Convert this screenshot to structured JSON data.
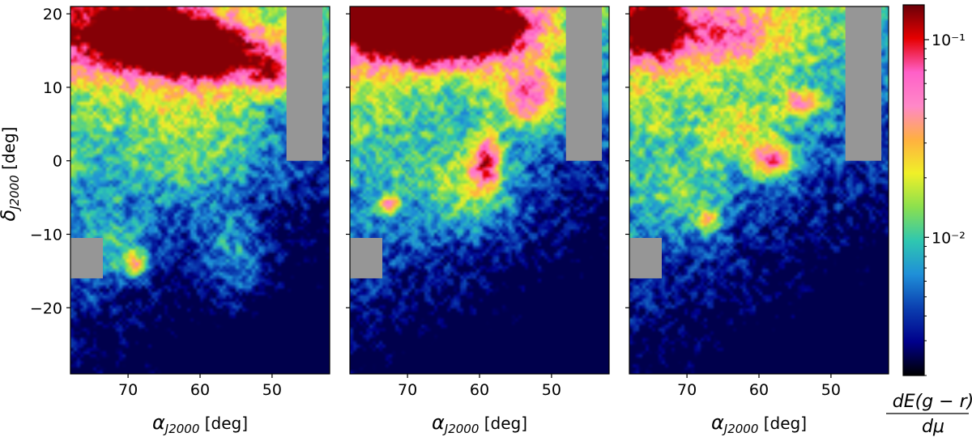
{
  "chart_data": {
    "type": "heatmap",
    "panels": [
      {
        "xlim": [
          78,
          42
        ],
        "ylim": [
          -29,
          21
        ],
        "xticks": [
          70,
          60,
          50
        ],
        "xtick_labels": [
          "70",
          "60",
          "50"
        ],
        "yticks": [
          20,
          10,
          0,
          -10,
          -20
        ],
        "ytick_labels": [
          "20",
          "10",
          "0",
          "−10",
          "−20"
        ],
        "masked_regions": [
          {
            "ra": [
              48,
              43
            ],
            "dec": [
              0,
              21
            ]
          },
          {
            "ra": [
              78,
              73.5
            ],
            "dec": [
              -16,
              -10.5
            ]
          }
        ],
        "blobs": [
          {
            "ra": 70,
            "dec": 17,
            "amp": 1.25,
            "sx": 6,
            "sy": 3.5
          },
          {
            "ra": 63,
            "dec": 16,
            "amp": 1.1,
            "sx": 5,
            "sy": 3
          },
          {
            "ra": 55,
            "dec": 14,
            "amp": 0.9,
            "sx": 6,
            "sy": 3
          },
          {
            "ra": 49.5,
            "dec": 11.5,
            "amp": 0.7,
            "sx": 2,
            "sy": 1.5
          },
          {
            "ra": 60,
            "dec": 3,
            "amp": 0.35,
            "sx": 6,
            "sy": 6
          },
          {
            "ra": 69,
            "dec": -14,
            "amp": 0.8,
            "sx": 1.2,
            "sy": 1.2
          },
          {
            "ra": 72,
            "dec": -12,
            "amp": 0.35,
            "sx": 3,
            "sy": 3
          },
          {
            "ra": 55,
            "dec": -14,
            "amp": 0.45,
            "sx": 3,
            "sy": 4
          }
        ]
      },
      {
        "xlim": [
          78,
          42
        ],
        "ylim": [
          -29,
          21
        ],
        "xticks": [
          70,
          60,
          50
        ],
        "xtick_labels": [
          "70",
          "60",
          "50"
        ],
        "yticks": [
          20,
          10,
          0,
          -10,
          -20
        ],
        "ytick_labels": [
          "",
          "",
          "",
          "",
          ""
        ],
        "masked_regions": [
          {
            "ra": [
              48,
              43
            ],
            "dec": [
              0,
              21
            ]
          },
          {
            "ra": [
              78,
              73.5
            ],
            "dec": [
              -16,
              -10.5
            ]
          }
        ],
        "blobs": [
          {
            "ra": 70,
            "dec": 18,
            "amp": 1.4,
            "sx": 8,
            "sy": 3.5
          },
          {
            "ra": 60,
            "dec": 18,
            "amp": 1.2,
            "sx": 6,
            "sy": 3
          },
          {
            "ra": 53,
            "dec": 9,
            "amp": 0.9,
            "sx": 3,
            "sy": 3
          },
          {
            "ra": 59,
            "dec": 0,
            "amp": 1.0,
            "sx": 1.5,
            "sy": 2.5
          },
          {
            "ra": 72.5,
            "dec": -6,
            "amp": 0.9,
            "sx": 1,
            "sy": 1
          },
          {
            "ra": 62,
            "dec": -4,
            "amp": 0.5,
            "sx": 5,
            "sy": 4
          }
        ]
      },
      {
        "xlim": [
          78,
          42
        ],
        "ylim": [
          -29,
          21
        ],
        "xticks": [
          70,
          60,
          50
        ],
        "xtick_labels": [
          "70",
          "60",
          "50"
        ],
        "yticks": [
          20,
          10,
          0,
          -10,
          -20
        ],
        "ytick_labels": [
          "",
          "",
          "",
          "",
          ""
        ],
        "masked_regions": [
          {
            "ra": [
              48,
              43
            ],
            "dec": [
              0,
              21
            ]
          },
          {
            "ra": [
              78,
              73.5
            ],
            "dec": [
              -16,
              -10.5
            ]
          }
        ],
        "blobs": [
          {
            "ra": 75,
            "dec": 18,
            "amp": 1.2,
            "sx": 3,
            "sy": 3
          },
          {
            "ra": 65,
            "dec": 17,
            "amp": 0.6,
            "sx": 6,
            "sy": 3
          },
          {
            "ra": 58,
            "dec": 0,
            "amp": 1.0,
            "sx": 2,
            "sy": 1.5
          },
          {
            "ra": 54,
            "dec": 8,
            "amp": 0.7,
            "sx": 2,
            "sy": 1.5
          },
          {
            "ra": 62,
            "dec": 4,
            "amp": 0.45,
            "sx": 4,
            "sy": 3
          },
          {
            "ra": 67,
            "dec": -8,
            "amp": 0.8,
            "sx": 1,
            "sy": 1
          },
          {
            "ra": 70,
            "dec": -5,
            "amp": 0.3,
            "sx": 4,
            "sy": 4
          }
        ]
      }
    ],
    "xlabel": "α_J2000 [deg]",
    "ylabel": "δ_J2000 [deg]",
    "colorbar": {
      "label_numerator": "dE(g − r)",
      "label_denominator": "dμ",
      "scale": "log",
      "range": [
        0.002,
        0.15
      ],
      "ticks": [
        {
          "value": 0.1,
          "label": "10⁻¹"
        },
        {
          "value": 0.01,
          "label": "10⁻²"
        }
      ],
      "colormap": [
        "#000000",
        "#00008b",
        "#0b3fb0",
        "#1f8fd8",
        "#2fc7b0",
        "#8be04e",
        "#f0f028",
        "#ffb040",
        "#ff88c8",
        "#ff60c8",
        "#e60000",
        "#6a0008"
      ]
    },
    "mask_color": "#969696"
  }
}
